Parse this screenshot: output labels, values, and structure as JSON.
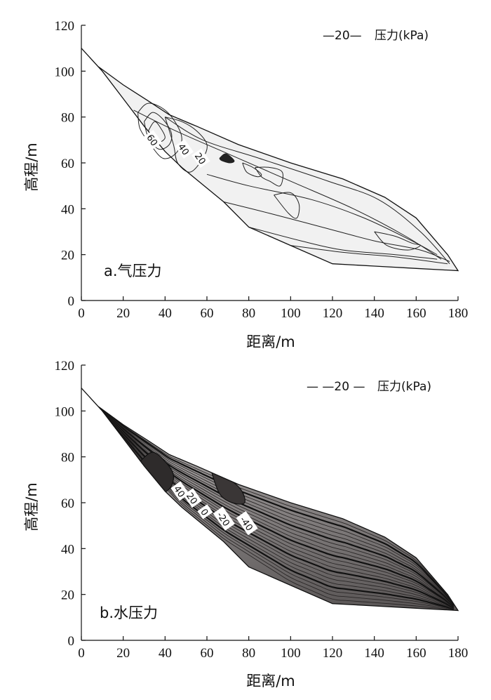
{
  "chart_data": [
    {
      "type": "contour",
      "panel_label": "a.气压力",
      "legend": {
        "sample": "—20—",
        "text": "压力(kPa)"
      },
      "xlabel": "距离/m",
      "ylabel": "高程/m",
      "xlim": [
        0,
        180
      ],
      "ylim": [
        0,
        120
      ],
      "xticks": [
        "0",
        "20",
        "40",
        "60",
        "80",
        "100",
        "120",
        "140",
        "160",
        "180"
      ],
      "yticks": [
        "0",
        "20",
        "40",
        "60",
        "80",
        "100",
        "120"
      ],
      "contour_labels": [
        {
          "text": "60",
          "x": 34,
          "y": 70
        },
        {
          "text": "40",
          "x": 49,
          "y": 66
        },
        {
          "text": "20",
          "x": 57,
          "y": 62
        }
      ],
      "fill_color": "#f1f1f1",
      "outline": [
        [
          0,
          110
        ],
        [
          8,
          102
        ],
        [
          20,
          94
        ],
        [
          32,
          87
        ],
        [
          42,
          81
        ],
        [
          55,
          76
        ],
        [
          75,
          68
        ],
        [
          100,
          60
        ],
        [
          125,
          53
        ],
        [
          145,
          45
        ],
        [
          160,
          36
        ],
        [
          175,
          20
        ],
        [
          180,
          13
        ],
        [
          160,
          14
        ],
        [
          140,
          15
        ],
        [
          120,
          16
        ],
        [
          100,
          24
        ],
        [
          80,
          32
        ],
        [
          68,
          43
        ],
        [
          56,
          52
        ],
        [
          48,
          58
        ],
        [
          40,
          65
        ],
        [
          30,
          76
        ],
        [
          20,
          88
        ],
        [
          10,
          100
        ],
        [
          0,
          110
        ]
      ],
      "layers": [
        [
          [
            32,
            87
          ],
          [
            55,
            76
          ],
          [
            90,
            68
          ],
          [
            130,
            56
          ],
          [
            148,
            46
          ],
          [
            165,
            34
          ],
          [
            178,
            16
          ]
        ],
        [
          [
            40,
            80
          ],
          [
            58,
            70
          ],
          [
            85,
            62
          ],
          [
            118,
            52
          ],
          [
            142,
            44
          ],
          [
            162,
            30
          ],
          [
            176,
            16
          ]
        ],
        [
          [
            25,
            83
          ],
          [
            45,
            74
          ],
          [
            70,
            64
          ],
          [
            100,
            52
          ],
          [
            130,
            40
          ],
          [
            155,
            28
          ],
          [
            172,
            18
          ]
        ],
        [
          [
            60,
            55
          ],
          [
            80,
            50
          ],
          [
            110,
            44
          ],
          [
            135,
            36
          ],
          [
            158,
            26
          ],
          [
            170,
            20
          ]
        ],
        [
          [
            68,
            43
          ],
          [
            90,
            38
          ],
          [
            115,
            32
          ],
          [
            140,
            26
          ],
          [
            162,
            22
          ],
          [
            176,
            17
          ]
        ],
        [
          [
            80,
            32
          ],
          [
            105,
            26
          ],
          [
            125,
            22
          ],
          [
            150,
            20
          ],
          [
            170,
            18
          ]
        ],
        [
          [
            100,
            24
          ],
          [
            125,
            21
          ],
          [
            150,
            19
          ],
          [
            175,
            16
          ]
        ]
      ],
      "contours": [
        [
          [
            27,
            82
          ],
          [
            32,
            86
          ],
          [
            40,
            83
          ],
          [
            46,
            76
          ],
          [
            48,
            70
          ],
          [
            45,
            64
          ],
          [
            39,
            62
          ],
          [
            33,
            68
          ],
          [
            28,
            75
          ],
          [
            27,
            82
          ]
        ],
        [
          [
            30,
            78
          ],
          [
            34,
            82
          ],
          [
            39,
            79
          ],
          [
            43,
            73
          ],
          [
            42,
            68
          ],
          [
            37,
            66
          ],
          [
            32,
            71
          ],
          [
            30,
            78
          ]
        ],
        [
          [
            32,
            74
          ],
          [
            35,
            78
          ],
          [
            38,
            75
          ],
          [
            40,
            71
          ],
          [
            37,
            69
          ],
          [
            34,
            71
          ],
          [
            32,
            74
          ]
        ],
        [
          [
            40,
            80
          ],
          [
            48,
            78
          ],
          [
            55,
            74
          ],
          [
            60,
            68
          ],
          [
            58,
            62
          ],
          [
            52,
            56
          ],
          [
            46,
            60
          ],
          [
            44,
            68
          ],
          [
            40,
            80
          ]
        ],
        [
          [
            66,
            62
          ],
          [
            69,
            64
          ],
          [
            73,
            61
          ],
          [
            71,
            60
          ],
          [
            67,
            61
          ],
          [
            66,
            62
          ]
        ],
        [
          [
            77,
            60
          ],
          [
            82,
            58
          ],
          [
            86,
            55
          ],
          [
            84,
            54
          ],
          [
            79,
            56
          ],
          [
            77,
            60
          ]
        ],
        [
          [
            83,
            58
          ],
          [
            90,
            58
          ],
          [
            96,
            56
          ],
          [
            95,
            50
          ],
          [
            90,
            52
          ],
          [
            86,
            54
          ],
          [
            83,
            58
          ]
        ],
        [
          [
            92,
            46
          ],
          [
            100,
            47
          ],
          [
            104,
            42
          ],
          [
            103,
            36
          ],
          [
            99,
            38
          ],
          [
            92,
            46
          ]
        ],
        [
          [
            140,
            30
          ],
          [
            150,
            28
          ],
          [
            158,
            25
          ],
          [
            162,
            24
          ],
          [
            156,
            22
          ],
          [
            146,
            24
          ],
          [
            140,
            30
          ]
        ]
      ]
    },
    {
      "type": "contour",
      "panel_label": "b.水压力",
      "legend": {
        "sample": "— —20 —",
        "text": "压力(kPa)"
      },
      "xlabel": "距离/m",
      "ylabel": "高程/m",
      "xlim": [
        0,
        180
      ],
      "ylim": [
        0,
        120
      ],
      "xticks": [
        "0",
        "20",
        "40",
        "60",
        "80",
        "100",
        "120",
        "140",
        "160",
        "180"
      ],
      "yticks": [
        "0",
        "20",
        "40",
        "60",
        "80",
        "100",
        "120"
      ],
      "contour_labels": [
        {
          "text": "40",
          "x": 47,
          "y": 65
        },
        {
          "text": "20",
          "x": 53,
          "y": 62
        },
        {
          "text": "0",
          "x": 59,
          "y": 56
        },
        {
          "text": "-20",
          "x": 68,
          "y": 53
        },
        {
          "text": "-40",
          "x": 79,
          "y": 51
        }
      ],
      "fill_color": "#8f8b8b",
      "outline": [
        [
          0,
          110
        ],
        [
          8,
          102
        ],
        [
          20,
          94
        ],
        [
          32,
          87
        ],
        [
          42,
          81
        ],
        [
          55,
          76
        ],
        [
          75,
          68
        ],
        [
          100,
          60
        ],
        [
          125,
          53
        ],
        [
          145,
          45
        ],
        [
          160,
          36
        ],
        [
          175,
          20
        ],
        [
          180,
          13
        ],
        [
          160,
          14
        ],
        [
          140,
          15
        ],
        [
          120,
          16
        ],
        [
          100,
          24
        ],
        [
          80,
          32
        ],
        [
          68,
          43
        ],
        [
          56,
          52
        ],
        [
          48,
          58
        ],
        [
          40,
          65
        ],
        [
          30,
          76
        ],
        [
          20,
          88
        ],
        [
          10,
          100
        ],
        [
          0,
          110
        ]
      ],
      "contour_bands": 22
    }
  ]
}
